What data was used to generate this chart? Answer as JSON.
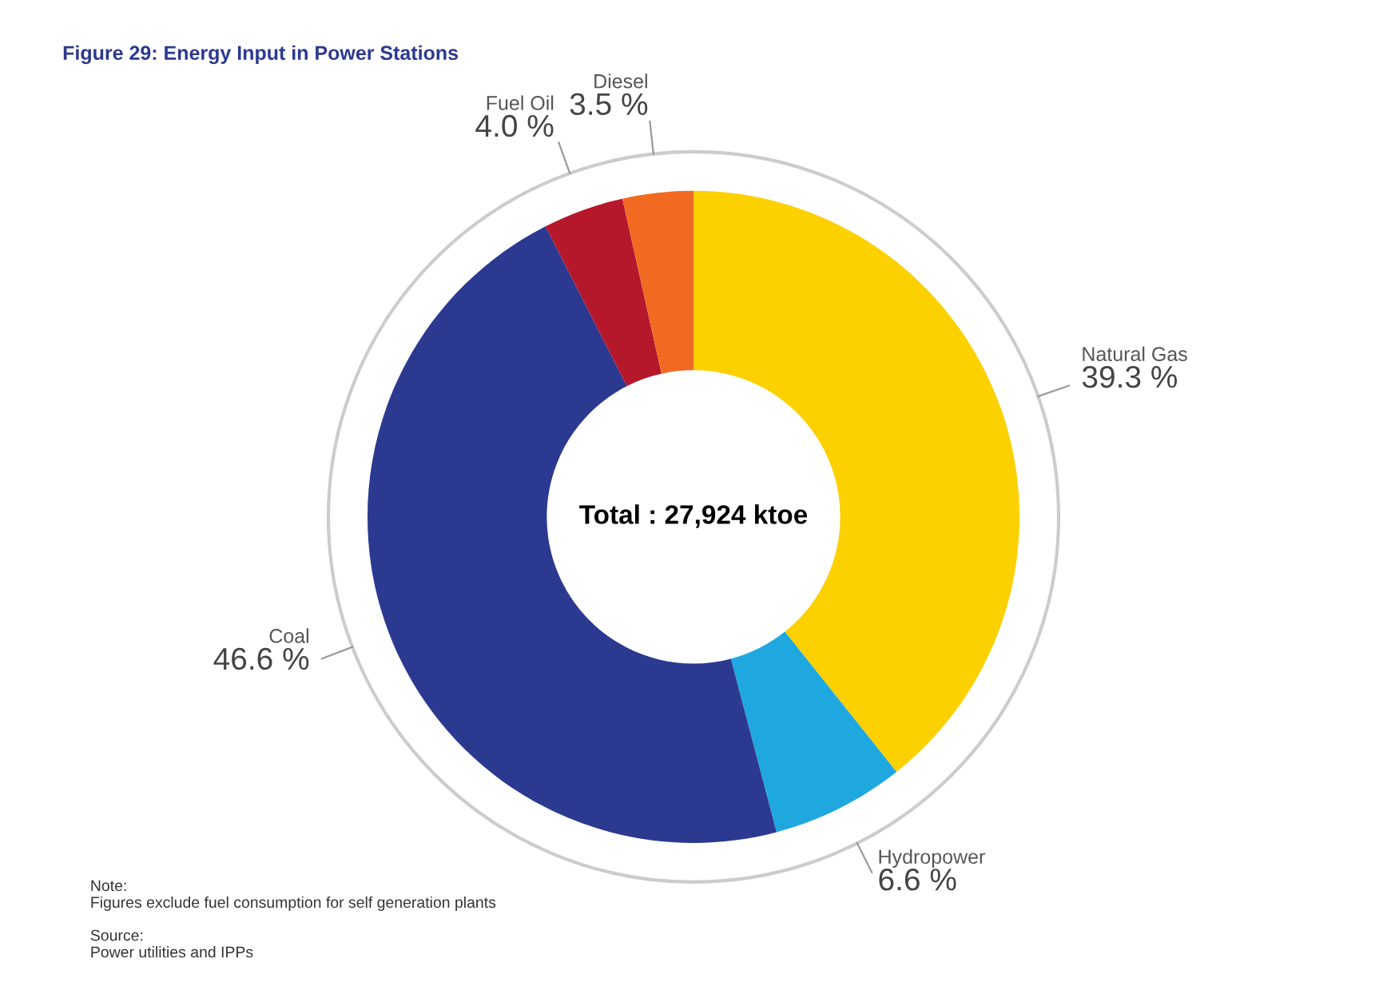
{
  "chart_data": {
    "type": "donut",
    "title": "Figure 29: Energy Input in Power Stations",
    "categories": [
      "Natural Gas",
      "Hydropower",
      "Coal",
      "Fuel Oil",
      "Diesel"
    ],
    "values": [
      39.3,
      6.6,
      46.6,
      4.0,
      3.5
    ],
    "value_labels": [
      "39.3 %",
      "6.6 %",
      "46.6 %",
      "4.0 %",
      "3.5 %"
    ],
    "colors": [
      "#fdd000",
      "#1fa8e0",
      "#2b3990",
      "#b5172b",
      "#f26a22"
    ],
    "annotations": [
      "Total : 27,924 ktoe",
      "Note:\nFigures exclude fuel consumption for self generation plants",
      "Source:\nPower utilities and IPPs"
    ],
    "legend": false
  }
}
